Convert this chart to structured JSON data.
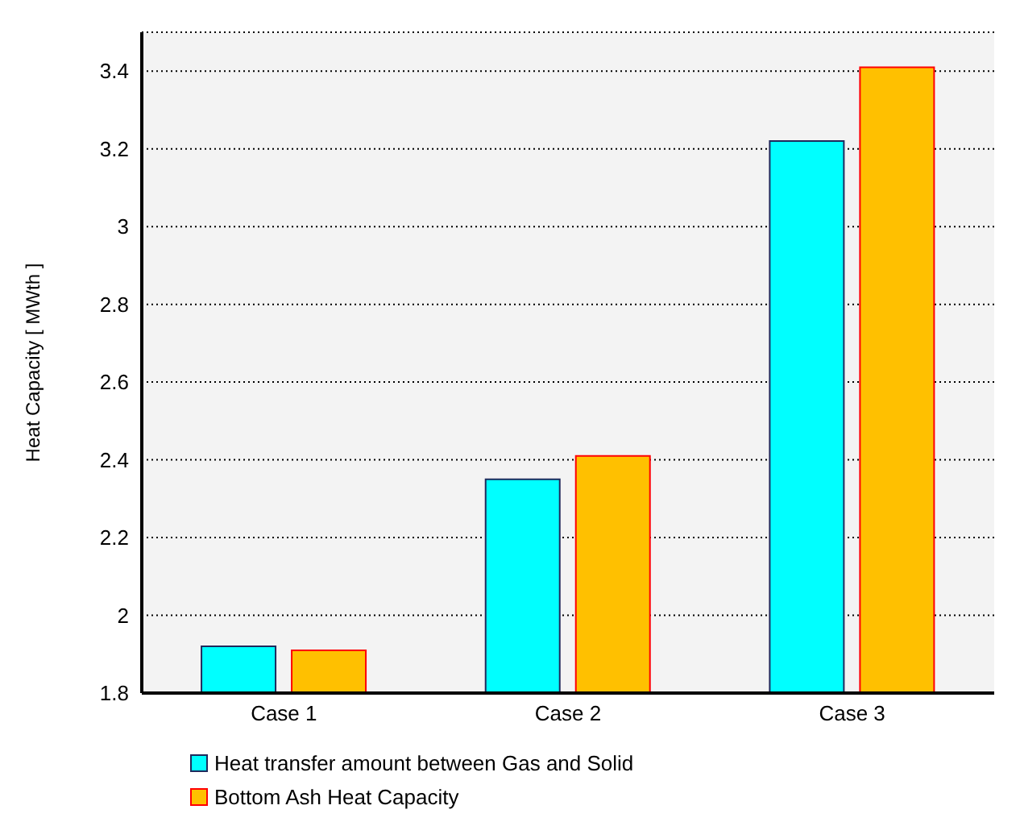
{
  "chart_data": {
    "type": "bar",
    "ylabel": "Heat Capacity [ MWth ]",
    "categories": [
      "Case 1",
      "Case 2",
      "Case 3"
    ],
    "series": [
      {
        "name": "Heat transfer amount between Gas and Solid",
        "color": "#00ffff",
        "values": [
          1.92,
          2.35,
          3.22
        ]
      },
      {
        "name": "Bottom Ash Heat Capacity",
        "color": "#ffc000",
        "values": [
          1.91,
          2.41,
          3.41
        ]
      }
    ],
    "ylim": [
      1.8,
      3.5
    ],
    "yticks": [
      1.8,
      2,
      2.2,
      2.4,
      2.6,
      2.8,
      3,
      3.2,
      3.4
    ],
    "grid": "y",
    "legend": "bottom"
  }
}
